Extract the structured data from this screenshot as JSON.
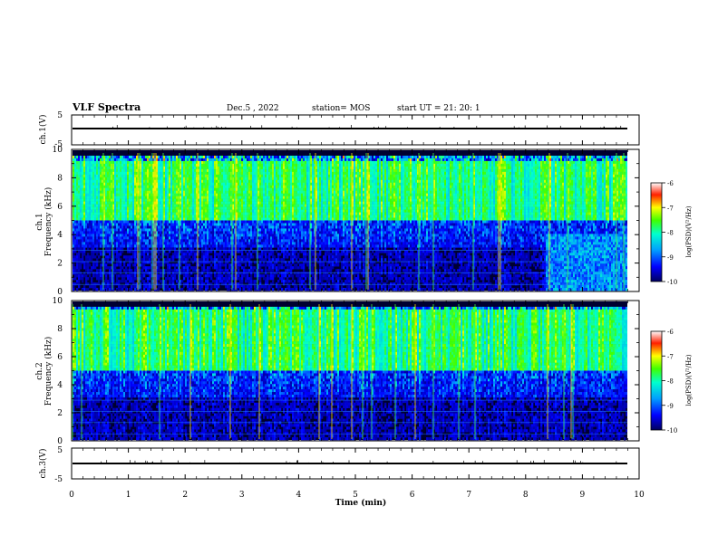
{
  "header": {
    "title": "VLF Spectra",
    "date": "Dec.5 , 2022",
    "station": "station= MOS",
    "start": "start UT =  21: 20: 1"
  },
  "chart_data": [
    {
      "type": "line",
      "panel": "ch1-waveform",
      "ylabel": "ch.1(V)",
      "ylim": [
        -5,
        5
      ],
      "yticks": [
        "5",
        "-5"
      ],
      "xlim": [
        0,
        10
      ],
      "series": [
        {
          "values_level": -0.5
        }
      ]
    },
    {
      "type": "heatmap",
      "panel": "ch1-spectrogram",
      "ylabel_top": "ch.1",
      "ylabel": "Frequency (kHz)",
      "ylim": [
        0,
        10
      ],
      "yticks": [
        "0",
        "2",
        "4",
        "6",
        "8",
        "10"
      ],
      "xlim": [
        0,
        10
      ],
      "colorbar": {
        "label": "log(PSD)(V²/Hz)",
        "range": [
          -10,
          -6
        ],
        "ticks": [
          "-6",
          "-7",
          "-8",
          "-9",
          "-10"
        ]
      },
      "intense_band_khz": [
        5,
        9.2
      ]
    },
    {
      "type": "heatmap",
      "panel": "ch2-spectrogram",
      "ylabel_top": "ch.2",
      "ylabel": "Frequency (kHz)",
      "ylim": [
        0,
        10
      ],
      "yticks": [
        "0",
        "2",
        "4",
        "6",
        "8",
        "10"
      ],
      "xlim": [
        0,
        10
      ],
      "colorbar": {
        "label": "log(PSD)(V²/Hz)",
        "range": [
          -10,
          -6
        ],
        "ticks": [
          "-6",
          "-7",
          "-8",
          "-9",
          "-10"
        ]
      },
      "intense_band_khz": [
        5,
        9.5
      ]
    },
    {
      "type": "line",
      "panel": "ch3-waveform",
      "ylabel": "ch.3(V)",
      "ylim": [
        -5,
        5
      ],
      "yticks": [
        "5",
        "-5"
      ],
      "xlim": [
        0,
        10
      ],
      "xlabel": "Time (min)",
      "xticks": [
        "0",
        "1",
        "2",
        "3",
        "4",
        "5",
        "6",
        "7",
        "8",
        "9",
        "10"
      ],
      "series": [
        {
          "values_level": -0.5
        }
      ]
    }
  ]
}
